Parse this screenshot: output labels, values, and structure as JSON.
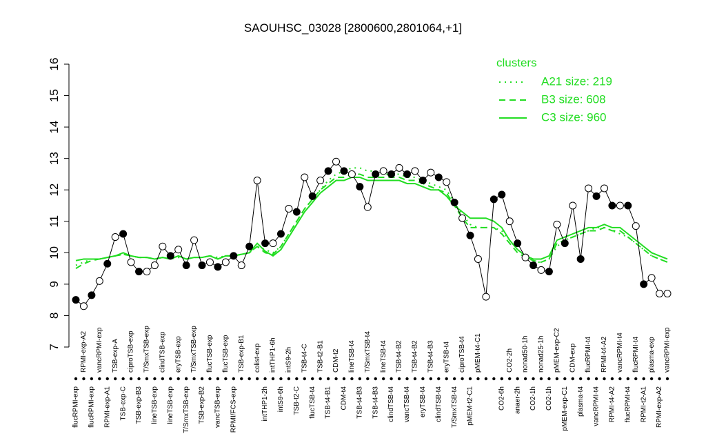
{
  "chart_data": {
    "type": "line",
    "title": "SAOUHSC_03028 [2800600,2801064,+1]",
    "ylim": [
      7,
      16
    ],
    "yticks": [
      7,
      8,
      9,
      10,
      11,
      12,
      13,
      14,
      15,
      16
    ],
    "grid": false,
    "legend_title": "clusters",
    "legend_position": "top-right",
    "point_color": "#000000",
    "categories": [
      "flucRPMI-exp",
      "RPMI-exp-A2",
      "flucRPMI-exp",
      "vancRPMI-exp",
      "RPMI-exp-A1",
      "TSB-exp-A",
      "TSB-exp-C",
      "ciproTSB-exp",
      "TSB-exp-B3",
      "T/SmxTSB-exp",
      "lineTSB-exp",
      "clindTSB-exp",
      "lineTSB-exp",
      "eryTSB-exp",
      "T/SmxTSB-exp",
      "T/SmxTSB-exp",
      "TSB-exp-B2",
      "flucTSB-exp",
      "vancTSB-exp",
      "flucTSB-exp",
      "RPMI/FCS-exp",
      "TSB-exp-B1",
      null,
      "colist-exp",
      "intTHP1-2h",
      "intTHP1-6h",
      "intS9-6h",
      "intS9-2h",
      "TSB-t2-C",
      "TSB-t4-C",
      "flucTSB-t4",
      "TSB-t2-B1",
      "TSB-t4-B1",
      "CDM-t2",
      "CDM-t4",
      "lineTSB-t4",
      "TSB-t4-B3",
      "T/SmxTSB-t4",
      "TSB-t4-B3",
      "lineTSB-t4",
      "clindTSB-t4",
      "TSB-t4-B2",
      "vancTSB-t4",
      "TSB-t4-B2",
      "eryTSB-t4",
      "TSB-t4-B3",
      "clindTSB-t4",
      "eryTSB-t4",
      "T/SmxTSB-t4",
      "ciproTSB-t4",
      "pMEM-t2-C1",
      "pMEM-t4-C1",
      null,
      null,
      "CO2-6h",
      "CO2-2h",
      "anaer-2h",
      "nonad50-1h",
      "CO2-1h",
      "nonad25-1h",
      "CO2-1h",
      "pMEM-exp-C2",
      "pMEM-exp-C1",
      "CDM-exp",
      "plasma-t4",
      "flucRPMI-t4",
      "vancRPMI-t4",
      "RPMI-t4-A2",
      "RPMI-t4-A2",
      "vancRPMI-t4",
      "flucRPMI-t4",
      "flucRPMI-t4",
      "RPMI-t2-A1",
      "plasma-exp",
      "RPMI-exp-A2",
      "vancRPMI-exp"
    ],
    "values": [
      8.5,
      8.3,
      8.65,
      9.1,
      9.65,
      10.5,
      10.6,
      9.7,
      9.4,
      9.4,
      9.6,
      10.2,
      9.9,
      10.1,
      9.6,
      10.4,
      9.6,
      9.7,
      9.55,
      9.7,
      9.9,
      9.6,
      10.2,
      12.3,
      10.3,
      10.3,
      10.6,
      11.4,
      11.3,
      12.4,
      11.8,
      12.3,
      12.6,
      12.9,
      12.6,
      12.5,
      12.1,
      11.45,
      12.5,
      12.6,
      12.5,
      12.7,
      12.5,
      12.6,
      12.3,
      12.55,
      12.4,
      12.25,
      11.6,
      11.1,
      10.55,
      9.8,
      8.6,
      11.7,
      11.85,
      11.0,
      10.3,
      9.85,
      9.6,
      9.45,
      9.4,
      10.9,
      10.3,
      11.5,
      9.8,
      12.05,
      11.8,
      12.05,
      11.5,
      11.5,
      11.5,
      10.85,
      9.0,
      9.2,
      8.7,
      8.7
    ],
    "filled": [
      true,
      false,
      true,
      false,
      true,
      false,
      true,
      false,
      true,
      false,
      false,
      false,
      true,
      false,
      true,
      false,
      true,
      false,
      true,
      false,
      true,
      false,
      true,
      false,
      true,
      false,
      true,
      false,
      true,
      false,
      true,
      false,
      true,
      false,
      true,
      false,
      true,
      false,
      true,
      false,
      true,
      false,
      true,
      false,
      true,
      false,
      true,
      false,
      true,
      false,
      true,
      false,
      false,
      true,
      true,
      false,
      true,
      false,
      true,
      false,
      true,
      false,
      true,
      false,
      true,
      false,
      true,
      false,
      true,
      false,
      true,
      false,
      true,
      false,
      false,
      false
    ],
    "series": [
      {
        "name": "A21 size: 219",
        "color": "#22dd22",
        "linestyle": "dotted",
        "values": [
          9.6,
          9.7,
          9.8,
          9.8,
          9.85,
          9.9,
          9.95,
          9.9,
          9.85,
          9.85,
          9.8,
          9.85,
          9.8,
          9.85,
          9.8,
          9.85,
          9.85,
          9.9,
          9.85,
          9.9,
          9.9,
          9.95,
          10.0,
          10.2,
          10.1,
          10.0,
          10.2,
          10.6,
          11.0,
          11.4,
          11.7,
          12.0,
          12.3,
          12.5,
          12.6,
          12.7,
          12.7,
          12.6,
          12.6,
          12.5,
          12.5,
          12.5,
          12.4,
          12.4,
          12.3,
          12.2,
          12.1,
          12.0,
          11.6,
          11.2,
          10.9,
          10.8,
          10.8,
          10.8,
          10.7,
          10.4,
          10.1,
          9.9,
          9.7,
          9.7,
          9.8,
          10.2,
          10.4,
          10.5,
          10.6,
          10.7,
          10.8,
          10.8,
          10.7,
          10.6,
          10.5,
          10.3,
          10.1,
          9.9,
          9.8,
          9.7
        ]
      },
      {
        "name": "B3 size: 608",
        "color": "#22dd22",
        "linestyle": "dashed",
        "values": [
          9.5,
          9.65,
          9.75,
          9.8,
          9.85,
          9.9,
          9.95,
          9.9,
          9.85,
          9.85,
          9.8,
          9.85,
          9.8,
          9.9,
          9.8,
          9.85,
          9.85,
          9.9,
          9.8,
          9.9,
          9.9,
          9.95,
          10.0,
          10.2,
          10.0,
          9.95,
          10.2,
          10.6,
          11.0,
          11.4,
          11.7,
          12.0,
          12.2,
          12.4,
          12.4,
          12.5,
          12.5,
          12.4,
          12.4,
          12.4,
          12.4,
          12.4,
          12.3,
          12.3,
          12.2,
          12.1,
          12.0,
          11.9,
          11.5,
          11.1,
          10.8,
          10.8,
          10.8,
          10.8,
          10.6,
          10.3,
          10.0,
          9.85,
          9.75,
          9.7,
          9.8,
          10.3,
          10.4,
          10.5,
          10.6,
          10.7,
          10.7,
          10.8,
          10.7,
          10.7,
          10.5,
          10.3,
          10.1,
          9.9,
          9.8,
          9.7
        ]
      },
      {
        "name": "C3 size: 960",
        "color": "#22dd22",
        "linestyle": "solid",
        "values": [
          9.75,
          9.8,
          9.8,
          9.8,
          9.85,
          9.9,
          10.0,
          9.9,
          9.85,
          9.85,
          9.8,
          9.85,
          9.8,
          9.9,
          9.8,
          9.85,
          9.85,
          9.9,
          9.8,
          9.9,
          9.9,
          9.95,
          10.0,
          10.3,
          10.05,
          9.9,
          10.1,
          10.5,
          10.9,
          11.3,
          11.6,
          11.9,
          12.1,
          12.3,
          12.3,
          12.4,
          12.4,
          12.3,
          12.3,
          12.3,
          12.3,
          12.3,
          12.2,
          12.2,
          12.1,
          12.0,
          12.0,
          11.8,
          11.5,
          11.3,
          11.1,
          11.1,
          11.1,
          11.0,
          10.8,
          10.4,
          10.1,
          9.9,
          9.8,
          9.8,
          9.9,
          10.4,
          10.5,
          10.6,
          10.7,
          10.8,
          10.8,
          10.9,
          10.8,
          10.8,
          10.6,
          10.4,
          10.2,
          10.0,
          9.9,
          9.8
        ]
      }
    ]
  }
}
